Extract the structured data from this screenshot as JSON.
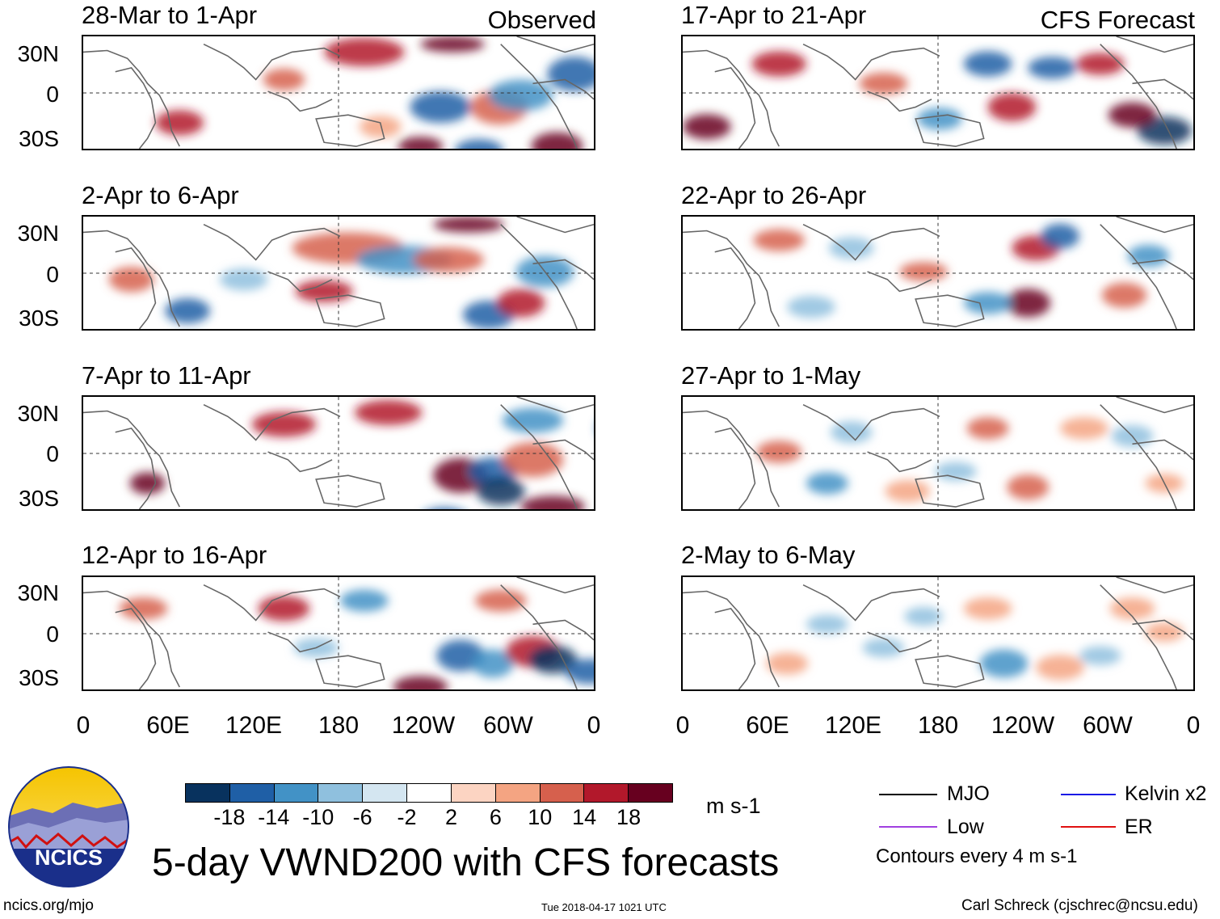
{
  "observed_label": "Observed",
  "forecast_label": "CFS Forecast",
  "panels": [
    {
      "title": "28-Mar to 1-Apr",
      "kind": "observed"
    },
    {
      "title": "2-Apr to 6-Apr",
      "kind": "observed"
    },
    {
      "title": "7-Apr to 11-Apr",
      "kind": "observed"
    },
    {
      "title": "12-Apr to 16-Apr",
      "kind": "observed"
    },
    {
      "title": "17-Apr to 21-Apr",
      "kind": "forecast"
    },
    {
      "title": "22-Apr to 26-Apr",
      "kind": "forecast"
    },
    {
      "title": "27-Apr to 1-May",
      "kind": "forecast"
    },
    {
      "title": "2-May to 6-May",
      "kind": "forecast"
    }
  ],
  "y_ticks": [
    "30N",
    "0",
    "30S"
  ],
  "x_ticks": [
    "0",
    "60E",
    "120E",
    "180",
    "120W",
    "60W",
    "0"
  ],
  "colorbar": {
    "colors": [
      "#08325e",
      "#1f5fa6",
      "#4292c6",
      "#8fc0de",
      "#d4e6f1",
      "#ffffff",
      "#fcd4c2",
      "#f4a482",
      "#d6604d",
      "#b2182b",
      "#67001f"
    ],
    "tick_labels": [
      "-18",
      "-14",
      "-10",
      "-6",
      "-2",
      "2",
      "6",
      "10",
      "14",
      "18"
    ],
    "units": "m s-1"
  },
  "legend": {
    "mjo": "MJO",
    "kelvin": "Kelvin x2",
    "low": "Low",
    "er": "ER",
    "contours_note": "Contours every 4 m s-1",
    "colors": {
      "mjo": "#000000",
      "kelvin": "#1a1ae6",
      "low": "#a040e0",
      "er": "#e01010"
    }
  },
  "logo_text": "NCICS",
  "main_title": "5-day VWND200 with CFS forecasts",
  "footer": {
    "left": "ncics.org/mjo",
    "center": "Tue 2018-04-17 1021 UTC",
    "right": "Carl Schreck (cjschrec@ncsu.edu)"
  }
}
